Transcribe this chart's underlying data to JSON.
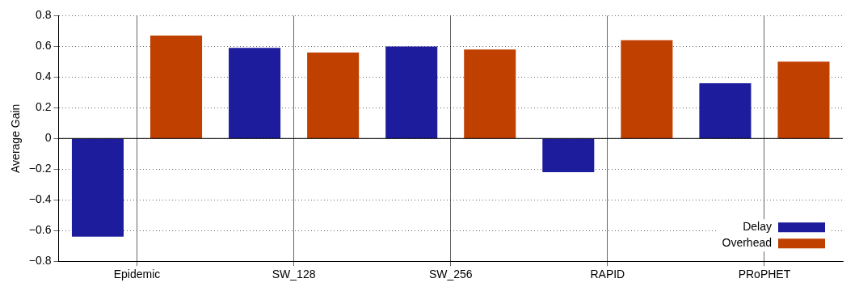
{
  "chart_data": {
    "type": "bar",
    "ylabel": "Average Gain",
    "categories": [
      "Epidemic",
      "SW_128",
      "SW_256",
      "RAPID",
      "PRoPHET"
    ],
    "series": [
      {
        "name": "Delay",
        "color": "#1c1c9c",
        "values": [
          -0.64,
          0.59,
          0.6,
          -0.22,
          0.36
        ]
      },
      {
        "name": "Overhead",
        "color": "#c04000",
        "values": [
          0.67,
          0.56,
          0.58,
          0.64,
          0.5
        ]
      }
    ],
    "ylim": [
      -0.8,
      0.8
    ],
    "yticks": [
      {
        "value": -0.8,
        "label": "−0.8"
      },
      {
        "value": -0.6,
        "label": "−0.6"
      },
      {
        "value": -0.4,
        "label": "−0.4"
      },
      {
        "value": -0.2,
        "label": "−0.2"
      },
      0,
      0.2,
      0.4,
      0.6,
      0.8
    ],
    "ref_lines": [
      {
        "axis": "y",
        "value": 0
      }
    ],
    "grid": true,
    "legend": "bottom right"
  }
}
